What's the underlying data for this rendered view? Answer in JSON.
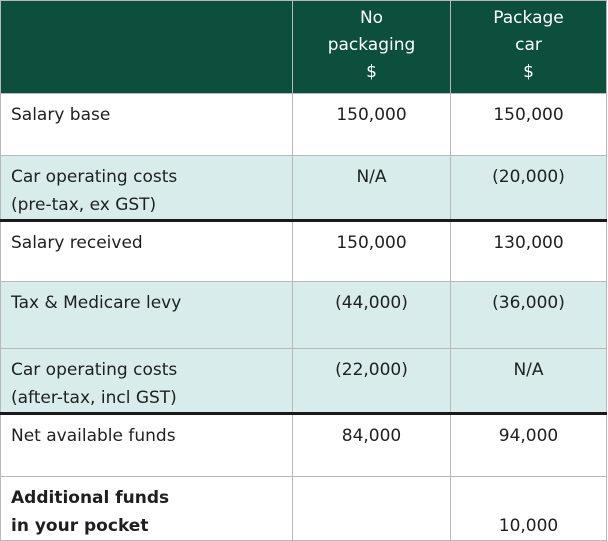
{
  "header": {
    "col_no_packaging": [
      "No",
      "packaging",
      "$"
    ],
    "col_package_car": [
      "Package",
      "car",
      "$"
    ]
  },
  "rows": [
    {
      "label": [
        "Salary base"
      ],
      "no_packaging": "150,000",
      "package_car": "150,000"
    },
    {
      "label": [
        "Car operating costs",
        "(pre-tax, ex GST)"
      ],
      "no_packaging": "N/A",
      "package_car": "(20,000)"
    },
    {
      "label": [
        "Salary received"
      ],
      "no_packaging": "150,000",
      "package_car": "130,000"
    },
    {
      "label": [
        "Tax & Medicare levy"
      ],
      "no_packaging": "(44,000)",
      "package_car": "(36,000)"
    },
    {
      "label": [
        "Car operating costs",
        "(after-tax, incl GST)"
      ],
      "no_packaging": "(22,000)",
      "package_car": "N/A"
    },
    {
      "label": [
        "Net available funds"
      ],
      "no_packaging": "84,000",
      "package_car": "94,000"
    },
    {
      "label": [
        "Additional funds",
        "in your pocket"
      ],
      "no_packaging": "",
      "package_car": "10,000"
    }
  ],
  "colors": {
    "header_bg": "#0c4f3c",
    "row_shade": "#d8ecec"
  }
}
